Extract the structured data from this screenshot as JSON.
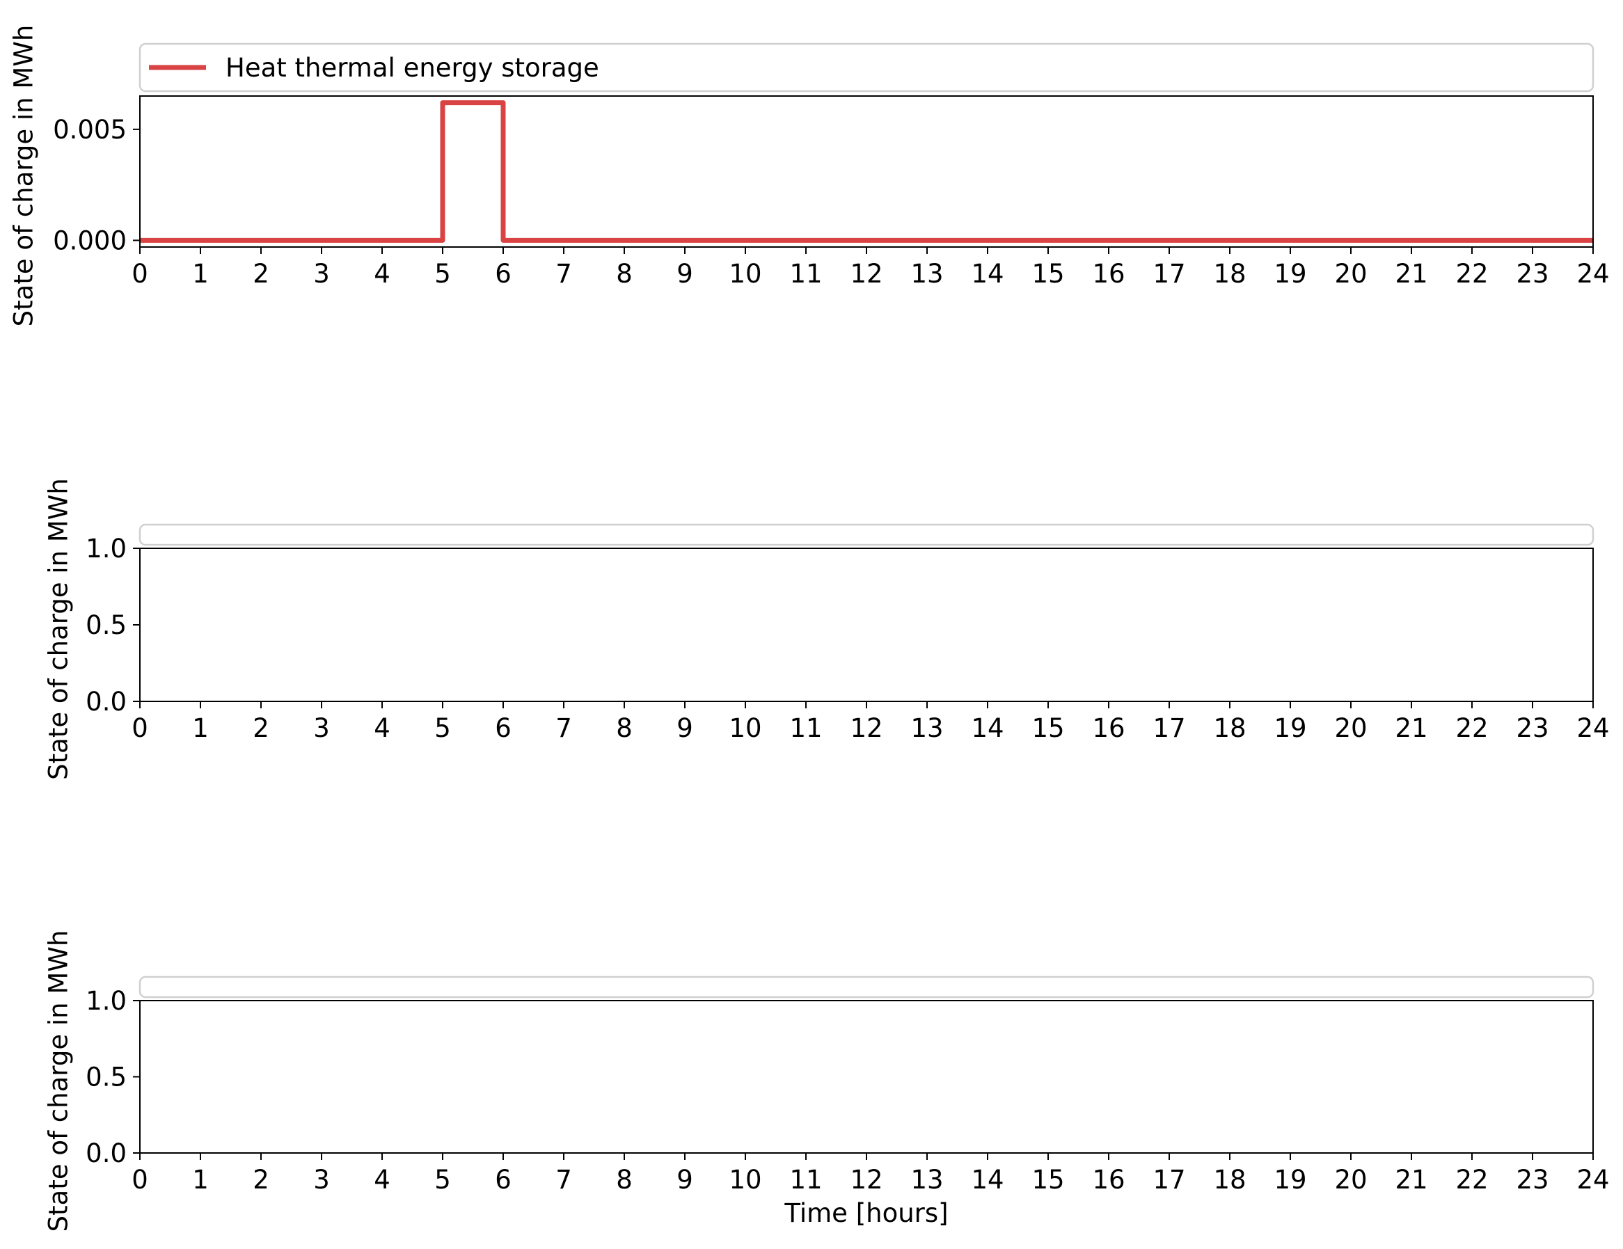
{
  "chart_data": [
    {
      "type": "line",
      "step": "post",
      "xlabel": "",
      "ylabel": "State of charge in MWh",
      "xlim": [
        0,
        24
      ],
      "ylim": [
        -0.0003,
        0.0065
      ],
      "xticks": [
        0,
        1,
        2,
        3,
        4,
        5,
        6,
        7,
        8,
        9,
        10,
        11,
        12,
        13,
        14,
        15,
        16,
        17,
        18,
        19,
        20,
        21,
        22,
        23,
        24
      ],
      "yticks": [
        0.0,
        0.005
      ],
      "ytick_labels": [
        "0.000",
        "0.005"
      ],
      "grid": false,
      "legend": {
        "placement": "above",
        "entries": [
          "Heat thermal energy storage"
        ]
      },
      "series": [
        {
          "name": "Heat thermal energy storage",
          "color": "#d94343",
          "x": [
            0,
            1,
            2,
            3,
            4,
            5,
            6,
            7,
            8,
            9,
            10,
            11,
            12,
            13,
            14,
            15,
            16,
            17,
            18,
            19,
            20,
            21,
            22,
            23,
            24
          ],
          "y": [
            0,
            0,
            0,
            0,
            0,
            0.0062,
            0,
            0,
            0,
            0,
            0,
            0,
            0,
            0,
            0,
            0,
            0,
            0,
            0,
            0,
            0,
            0,
            0,
            0,
            0
          ]
        }
      ]
    },
    {
      "type": "line",
      "xlabel": "",
      "ylabel": "State of charge in MWh",
      "xlim": [
        0,
        24
      ],
      "ylim": [
        0,
        1
      ],
      "xticks": [
        0,
        1,
        2,
        3,
        4,
        5,
        6,
        7,
        8,
        9,
        10,
        11,
        12,
        13,
        14,
        15,
        16,
        17,
        18,
        19,
        20,
        21,
        22,
        23,
        24
      ],
      "yticks": [
        0.0,
        0.5,
        1.0
      ],
      "ytick_labels": [
        "0.0",
        "0.5",
        "1.0"
      ],
      "grid": false,
      "legend": {
        "placement": "above",
        "entries": []
      },
      "series": []
    },
    {
      "type": "line",
      "xlabel": "Time [hours]",
      "ylabel": "State of charge in MWh",
      "xlim": [
        0,
        24
      ],
      "ylim": [
        0,
        1
      ],
      "xticks": [
        0,
        1,
        2,
        3,
        4,
        5,
        6,
        7,
        8,
        9,
        10,
        11,
        12,
        13,
        14,
        15,
        16,
        17,
        18,
        19,
        20,
        21,
        22,
        23,
        24
      ],
      "yticks": [
        0.0,
        0.5,
        1.0
      ],
      "ytick_labels": [
        "0.0",
        "0.5",
        "1.0"
      ],
      "grid": false,
      "legend": {
        "placement": "above",
        "entries": []
      },
      "series": []
    }
  ]
}
